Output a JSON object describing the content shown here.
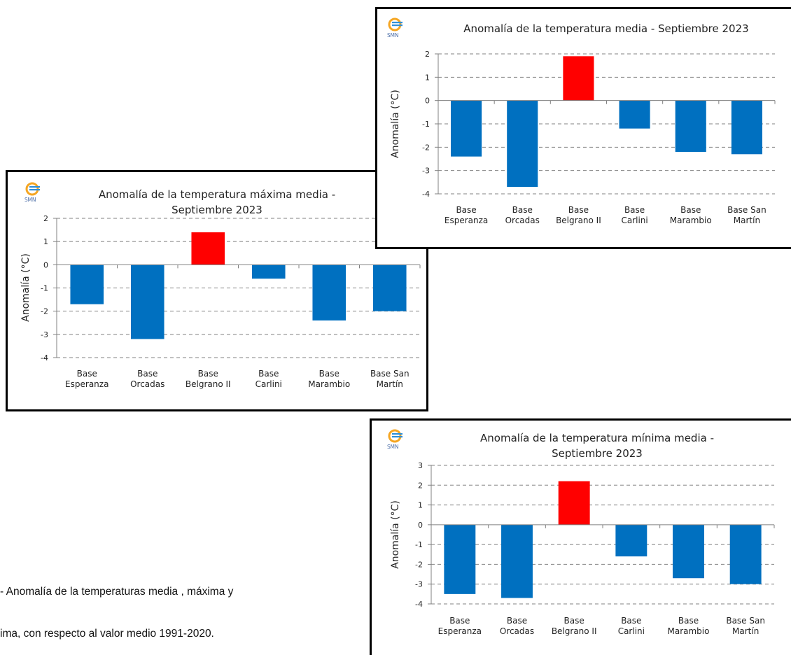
{
  "caption": {
    "line1": "- Anomalía de la temperaturas media , máxima y",
    "line2": "ima, con respecto al valor medio 1991-2020."
  },
  "colors": {
    "negative": "#0070C0",
    "positive": "#FF0000",
    "grid": "#808080"
  },
  "chart_data": [
    {
      "id": "media",
      "type": "bar",
      "title": [
        "Anomalía de la temperatura media - Septiembre 2023"
      ],
      "logo_text": "SMN",
      "ylabel": "Anomalía (°C)",
      "ylim": [
        -4,
        2
      ],
      "yticks": [
        -4,
        -3,
        -2,
        -1,
        0,
        1,
        2
      ],
      "categories": [
        [
          "Base",
          "Esperanza"
        ],
        [
          "Base",
          "Orcadas"
        ],
        [
          "Base",
          "Belgrano II"
        ],
        [
          "Base",
          "Carlini"
        ],
        [
          "Base",
          "Marambio"
        ],
        [
          "Base San",
          "Martín"
        ]
      ],
      "values": [
        -2.4,
        -3.7,
        1.9,
        -1.2,
        -2.2,
        -2.3
      ],
      "grid": true
    },
    {
      "id": "maxima",
      "type": "bar",
      "title": [
        "Anomalía de la temperatura máxima media -",
        "Septiembre 2023"
      ],
      "logo_text": "SMN",
      "ylabel": "Anomalía (°C)",
      "ylim": [
        -4,
        2
      ],
      "yticks": [
        -4,
        -3,
        -2,
        -1,
        0,
        1,
        2
      ],
      "categories": [
        [
          "Base",
          "Esperanza"
        ],
        [
          "Base",
          "Orcadas"
        ],
        [
          "Base",
          "Belgrano II"
        ],
        [
          "Base",
          "Carlini"
        ],
        [
          "Base",
          "Marambio"
        ],
        [
          "Base San",
          "Martín"
        ]
      ],
      "values": [
        -1.7,
        -3.2,
        1.4,
        -0.6,
        -2.4,
        -2.0
      ],
      "grid": true
    },
    {
      "id": "minima",
      "type": "bar",
      "title": [
        "Anomalía de la temperatura mínima media -",
        "Septiembre 2023"
      ],
      "logo_text": "SMN",
      "ylabel": "Anomalía (°C)",
      "ylim": [
        -4,
        3
      ],
      "yticks": [
        -4,
        -3,
        -2,
        -1,
        0,
        1,
        2,
        3
      ],
      "categories": [
        [
          "Base",
          "Esperanza"
        ],
        [
          "Base",
          "Orcadas"
        ],
        [
          "Base",
          "Belgrano II"
        ],
        [
          "Base",
          "Carlini"
        ],
        [
          "Base",
          "Marambio"
        ],
        [
          "Base San",
          "Martín"
        ]
      ],
      "values": [
        -3.5,
        -3.7,
        2.2,
        -1.6,
        -2.7,
        -3.0
      ],
      "grid": true
    }
  ]
}
